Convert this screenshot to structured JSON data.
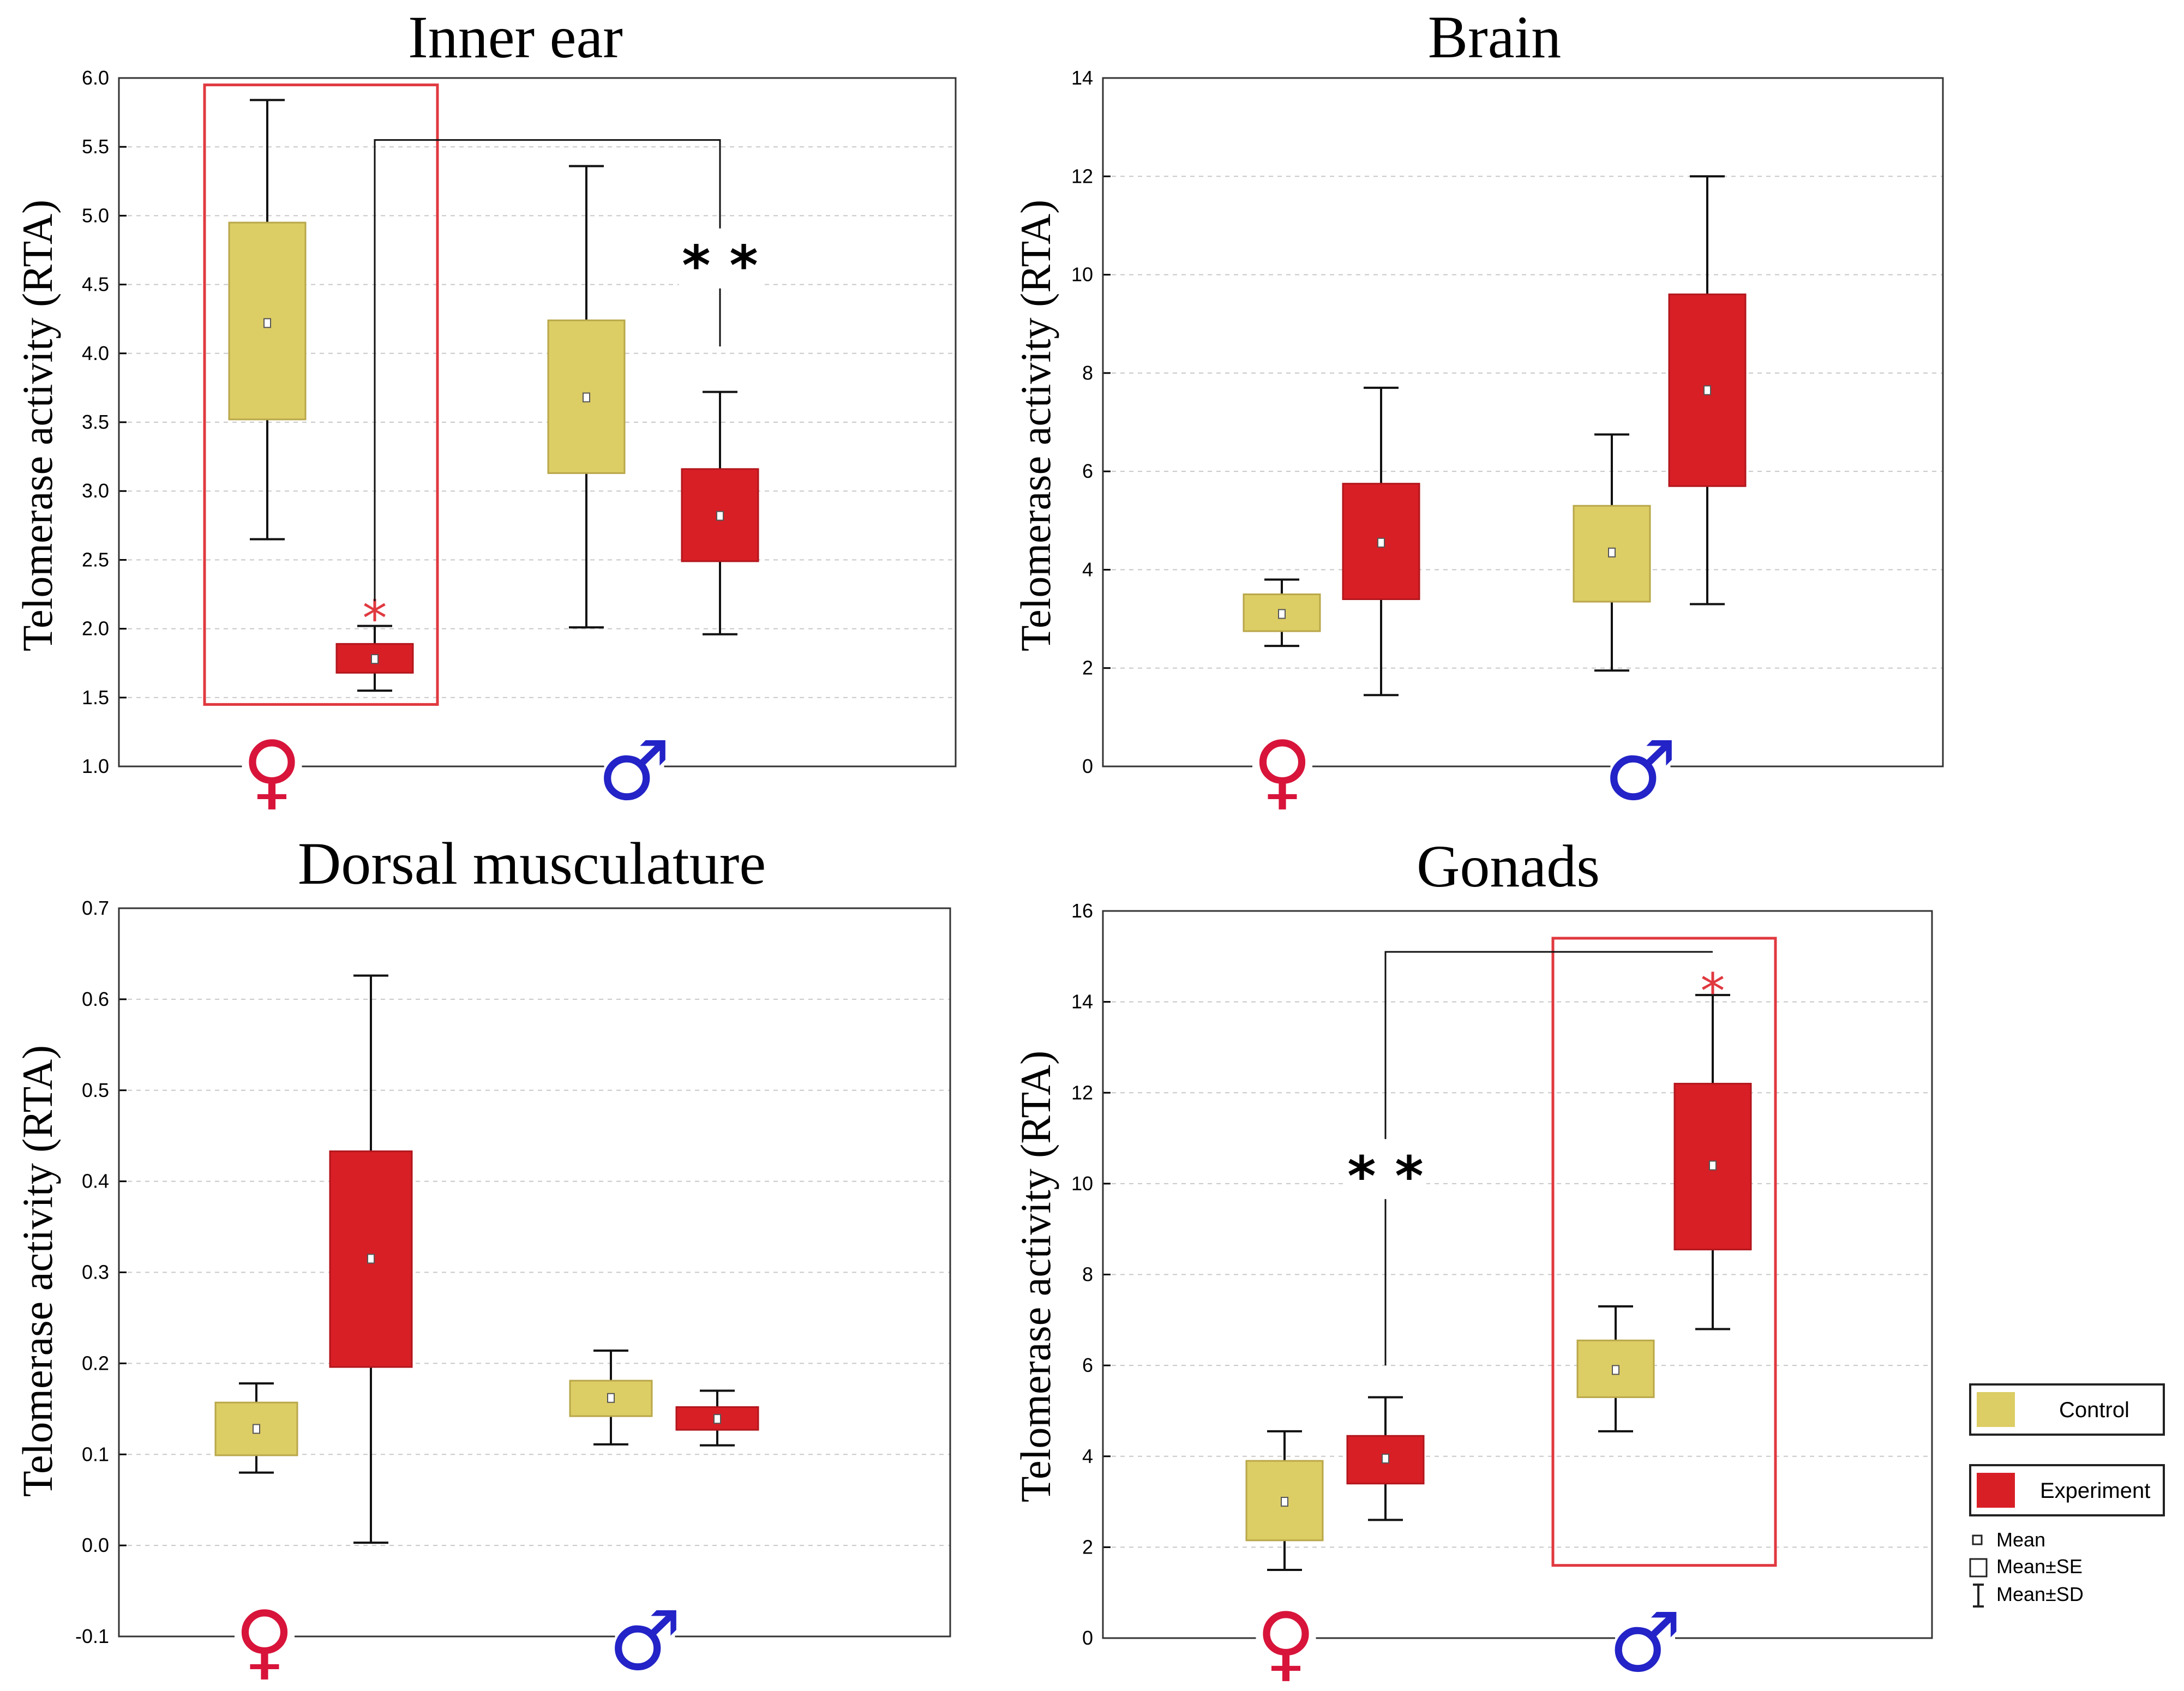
{
  "colors": {
    "control": "#dccd65",
    "control_stroke": "#b9a74a",
    "experiment": "#d81f26",
    "experiment_stroke": "#b3161c",
    "female_symbol": "#d8143a",
    "male_symbol": "#2323c8",
    "highlight": "#e0393f",
    "star_red": "#e0393f",
    "grid": "#c8c8c8"
  },
  "group_symbols": [
    "♀",
    "♂"
  ],
  "y_axis_label": "Telomerase activity (RTA)",
  "legend": {
    "control_label": "Control",
    "experiment_label": "Experiment",
    "mean_label": "Mean",
    "se_label": "Mean±SE",
    "sd_label": "Mean±SD"
  },
  "chart_data": [
    {
      "type": "box",
      "title": "Inner ear",
      "ylabel": "Telomerase activity (RTA)",
      "ylim": [
        1.0,
        6.0
      ],
      "ticks": [
        "1.0",
        "1.5",
        "2.0",
        "2.5",
        "3.0",
        "3.5",
        "4.0",
        "4.5",
        "5.0",
        "5.5",
        "6.0"
      ],
      "categories": [
        "♀",
        "♂"
      ],
      "series": [
        {
          "name": "Control",
          "boxes": [
            {
              "mean": 4.22,
              "se_low": 3.52,
              "se_high": 4.95,
              "sd_low": 2.65,
              "sd_high": 5.84
            },
            {
              "mean": 3.68,
              "se_low": 3.13,
              "se_high": 4.24,
              "sd_low": 2.01,
              "sd_high": 5.36
            }
          ]
        },
        {
          "name": "Experiment",
          "boxes": [
            {
              "mean": 1.78,
              "se_low": 1.68,
              "se_high": 1.89,
              "sd_low": 1.55,
              "sd_high": 2.02
            },
            {
              "mean": 2.82,
              "se_low": 2.49,
              "se_high": 3.16,
              "sd_low": 1.96,
              "sd_high": 3.72
            }
          ]
        }
      ],
      "annotations": [
        {
          "text": "*",
          "group": 0,
          "series": 1,
          "at": 2.13,
          "color": "red"
        },
        {
          "text": "* *",
          "between": "female experiment vs male experiment",
          "at": 4.65,
          "color": "black",
          "bracket_top": 5.55,
          "bracket_low_left": 2.2,
          "bracket_low_right": 4.05
        }
      ],
      "highlight": {
        "group": 0,
        "from": 1.45,
        "to": 5.95
      }
    },
    {
      "type": "box",
      "title": "Brain",
      "ylabel": "Telomerase activity (RTA)",
      "ylim": [
        0,
        14
      ],
      "ticks": [
        "0",
        "2",
        "4",
        "6",
        "8",
        "10",
        "12",
        "14"
      ],
      "categories": [
        "♀",
        "♂"
      ],
      "series": [
        {
          "name": "Control",
          "boxes": [
            {
              "mean": 3.1,
              "se_low": 2.75,
              "se_high": 3.5,
              "sd_low": 2.45,
              "sd_high": 3.8
            },
            {
              "mean": 4.35,
              "se_low": 3.35,
              "se_high": 5.3,
              "sd_low": 1.95,
              "sd_high": 6.75
            }
          ]
        },
        {
          "name": "Experiment",
          "boxes": [
            {
              "mean": 4.55,
              "se_low": 3.4,
              "se_high": 5.75,
              "sd_low": 1.45,
              "sd_high": 7.7
            },
            {
              "mean": 7.65,
              "se_low": 5.7,
              "se_high": 9.6,
              "sd_low": 3.3,
              "sd_high": 12.0
            }
          ]
        }
      ]
    },
    {
      "type": "box",
      "title": "Dorsal musculature",
      "ylabel": "Telomerase activity (RTA)",
      "ylim": [
        -0.1,
        0.7
      ],
      "ticks": [
        "-0.1",
        "0.0",
        "0.1",
        "0.2",
        "0.3",
        "0.4",
        "0.5",
        "0.6",
        "0.7"
      ],
      "categories": [
        "♀",
        "♂"
      ],
      "series": [
        {
          "name": "Control",
          "boxes": [
            {
              "mean": 0.128,
              "se_low": 0.099,
              "se_high": 0.157,
              "sd_low": 0.08,
              "sd_high": 0.178
            },
            {
              "mean": 0.162,
              "se_low": 0.142,
              "se_high": 0.181,
              "sd_low": 0.111,
              "sd_high": 0.214
            }
          ]
        },
        {
          "name": "Experiment",
          "boxes": [
            {
              "mean": 0.315,
              "se_low": 0.196,
              "se_high": 0.433,
              "sd_low": 0.003,
              "sd_high": 0.626
            },
            {
              "mean": 0.139,
              "se_low": 0.127,
              "se_high": 0.152,
              "sd_low": 0.11,
              "sd_high": 0.17
            }
          ]
        }
      ]
    },
    {
      "type": "box",
      "title": "Gonads",
      "ylabel": "Telomerase activity (RTA)",
      "ylim": [
        0,
        16
      ],
      "ticks": [
        "0",
        "2",
        "4",
        "6",
        "8",
        "10",
        "12",
        "14",
        "16"
      ],
      "categories": [
        "♀",
        "♂"
      ],
      "series": [
        {
          "name": "Control",
          "boxes": [
            {
              "mean": 3.0,
              "se_low": 2.15,
              "se_high": 3.9,
              "sd_low": 1.5,
              "sd_high": 4.55
            },
            {
              "mean": 5.9,
              "se_low": 5.3,
              "se_high": 6.55,
              "sd_low": 4.55,
              "sd_high": 7.3
            }
          ]
        },
        {
          "name": "Experiment",
          "boxes": [
            {
              "mean": 3.95,
              "se_low": 3.4,
              "se_high": 4.45,
              "sd_low": 2.6,
              "sd_high": 5.3
            },
            {
              "mean": 10.4,
              "se_low": 8.55,
              "se_high": 12.2,
              "sd_low": 6.8,
              "sd_high": 14.15
            }
          ]
        }
      ],
      "annotations": [
        {
          "text": "*",
          "group": 1,
          "series": 1,
          "at": 14.4,
          "color": "red"
        },
        {
          "text": "* *",
          "between": "female experiment vs male experiment",
          "at": 10.2,
          "color": "black",
          "bracket_top": 15.1,
          "bracket_low_left": 6.0,
          "bracket_low_right": 15.1
        }
      ],
      "highlight": {
        "group": 1,
        "from": 1.6,
        "to": 15.4
      }
    }
  ]
}
